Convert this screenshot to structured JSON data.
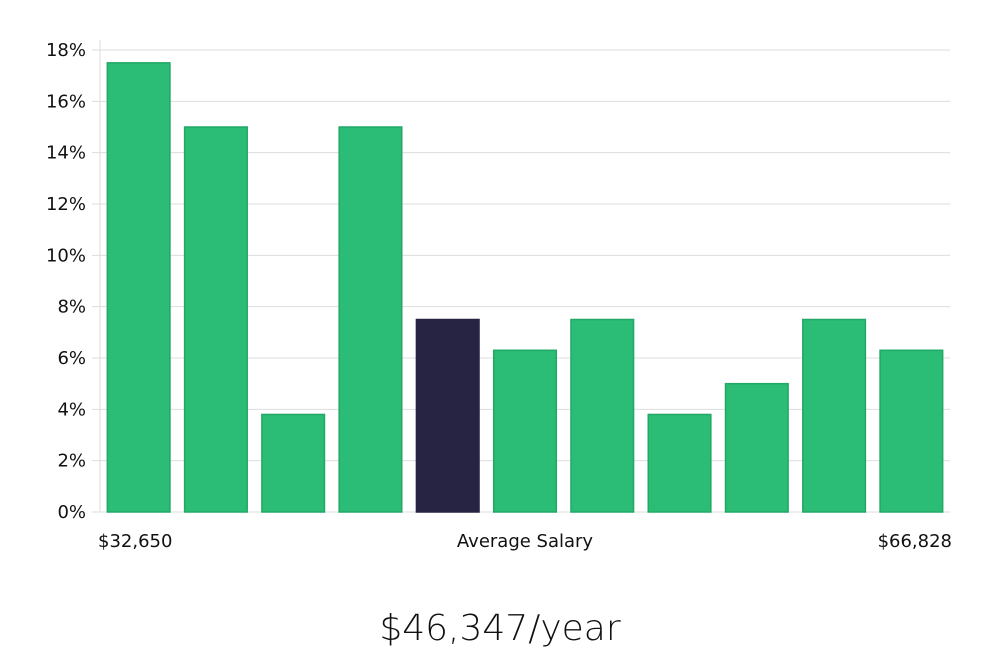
{
  "chart_data": {
    "type": "bar",
    "categories": [
      "",
      "",
      "",
      "",
      "",
      "",
      "",
      "",
      "",
      "",
      ""
    ],
    "values": [
      17.5,
      15.0,
      3.8,
      15.0,
      7.5,
      6.3,
      7.5,
      3.8,
      5.0,
      7.5,
      6.3
    ],
    "highlight_index": 4,
    "ylim": [
      0,
      18
    ],
    "yticks": [
      0,
      2,
      4,
      6,
      8,
      10,
      12,
      14,
      16,
      18
    ],
    "ytick_suffix": "%",
    "grid": true,
    "x_min_label": "$32,650",
    "x_max_label": "$66,828",
    "xlabel": "Average Salary",
    "colors": {
      "bar": "#2bbd76",
      "bar_edge": "#22a866",
      "highlight": "#272443",
      "grid": "#dddddd"
    }
  },
  "headline": "$46,347/year"
}
